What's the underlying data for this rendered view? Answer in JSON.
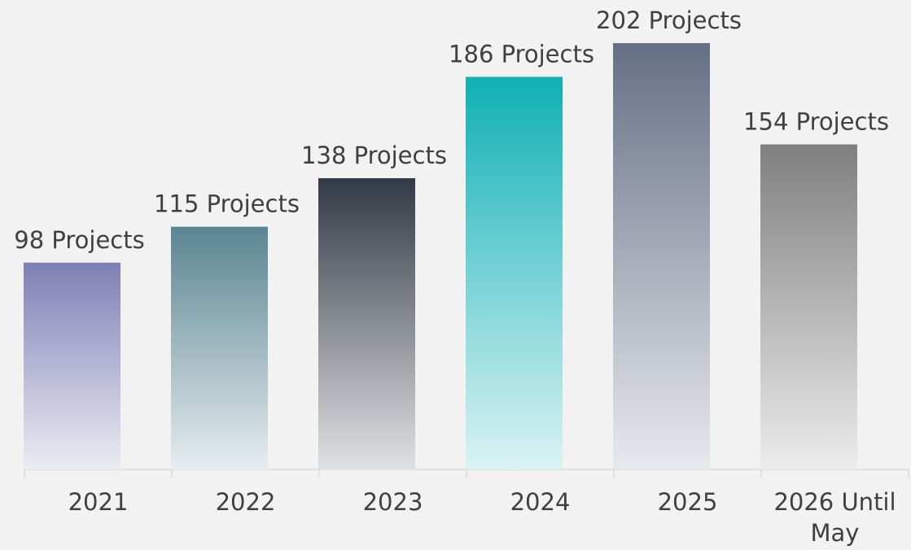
{
  "chart_data": {
    "type": "bar",
    "categories": [
      "2021",
      "2022",
      "2023",
      "2024",
      "2025",
      "2026 Until May"
    ],
    "values": [
      98,
      115,
      138,
      186,
      202,
      154
    ],
    "value_labels": [
      "98 Projects",
      "115 Projects",
      "138 Projects",
      "186 Projects",
      "202 Projects",
      "154 Projects"
    ],
    "colors": [
      "#7f7fb5",
      "#5a8592",
      "#323a45",
      "#0fb0b5",
      "#656f85",
      "#7f7f7f"
    ]
  }
}
